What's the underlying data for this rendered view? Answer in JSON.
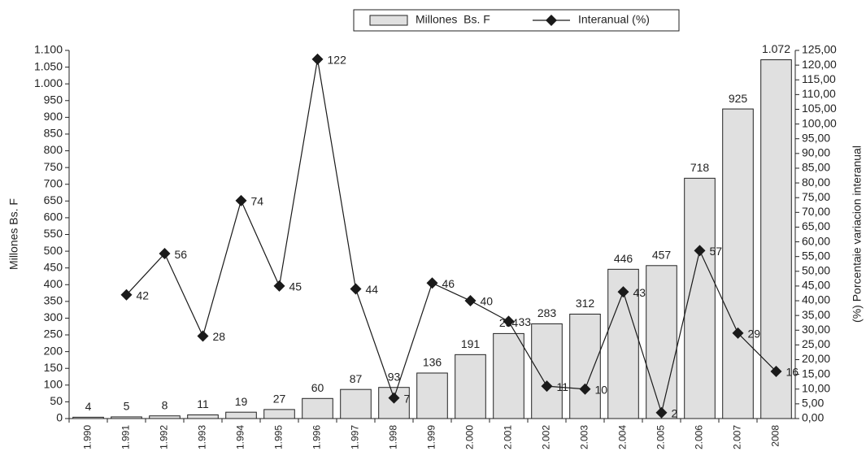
{
  "chart_data": {
    "type": "bar-line",
    "categories": [
      "1.990",
      "1.991",
      "1.992",
      "1.993",
      "1.994",
      "1.995",
      "1.996",
      "1.997",
      "1.998",
      "1.999",
      "2.000",
      "2.001",
      "2.002",
      "2.003",
      "2.004",
      "2.005",
      "2.006",
      "2.007",
      "2008"
    ],
    "series": [
      {
        "name": "Millones  Bs. F",
        "type": "bar",
        "color": "#e0e0e0",
        "values": [
          4,
          5,
          8,
          11,
          19,
          27,
          60,
          87,
          93,
          136,
          191,
          254,
          283,
          312,
          446,
          457,
          718,
          925,
          1072
        ],
        "value_labels": [
          "4",
          "5",
          "8",
          "11",
          "19",
          "27",
          "60",
          "87",
          "93",
          "136",
          "191",
          "254",
          "283",
          "312",
          "446",
          "457",
          "718",
          "925",
          "1.072"
        ]
      },
      {
        "name": "Interanual (%)",
        "type": "line",
        "axis": "y2",
        "color": "#1a1a1a",
        "values": [
          null,
          42,
          56,
          28,
          74,
          45,
          122,
          44,
          7,
          46,
          40,
          33,
          11,
          10,
          43,
          2,
          57,
          29,
          16
        ]
      }
    ],
    "ylabel": "Millones Bs. F",
    "y2label": "(%) Porcentaie variacion interanual",
    "ylim": [
      0,
      1100
    ],
    "yticks": [
      0,
      50,
      100,
      150,
      200,
      250,
      300,
      350,
      400,
      450,
      500,
      550,
      600,
      650,
      700,
      750,
      800,
      850,
      900,
      950,
      {
        "value": 1000,
        "label": "1.000"
      },
      {
        "value": 1050,
        "label": "1.050"
      },
      {
        "value": 1100,
        "label": "1.100"
      }
    ],
    "y2lim": [
      0,
      125
    ],
    "y2ticks": [
      {
        "value": 0,
        "label": "0,00"
      },
      {
        "value": 5,
        "label": "5,00"
      },
      {
        "value": 10,
        "label": "10,00"
      },
      {
        "value": 15,
        "label": "15,00"
      },
      {
        "value": 20,
        "label": "20,00"
      },
      {
        "value": 25,
        "label": "25,00"
      },
      {
        "value": 30,
        "label": "30,00"
      },
      {
        "value": 35,
        "label": "35,00"
      },
      {
        "value": 40,
        "label": "40,00"
      },
      {
        "value": 45,
        "label": "45,00"
      },
      {
        "value": 50,
        "label": "50,00"
      },
      {
        "value": 55,
        "label": "55,00"
      },
      {
        "value": 60,
        "label": "60,00"
      },
      {
        "value": 65,
        "label": "65,00"
      },
      {
        "value": 70,
        "label": "70,00"
      },
      {
        "value": 75,
        "label": "75,00"
      },
      {
        "value": 80,
        "label": "80,00"
      },
      {
        "value": 85,
        "label": "85,00"
      },
      {
        "value": 90,
        "label": "90,00"
      },
      {
        "value": 95,
        "label": "95,00"
      },
      {
        "value": 100,
        "label": "100,00"
      },
      {
        "value": 105,
        "label": "105,00"
      },
      {
        "value": 110,
        "label": "110,00"
      },
      {
        "value": 115,
        "label": "115,00"
      },
      {
        "value": 120,
        "label": "120,00"
      },
      {
        "value": 125,
        "label": "125,00"
      }
    ],
    "grid": false,
    "legend": "top"
  }
}
